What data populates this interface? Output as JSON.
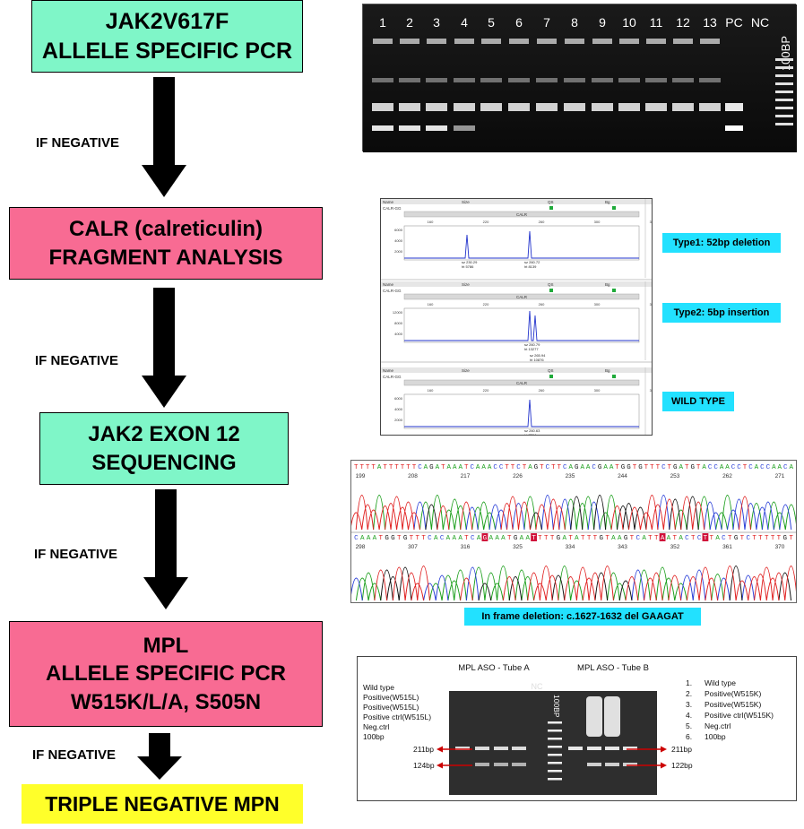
{
  "steps": [
    {
      "line1": "JAK2V617F",
      "line2": "ALLELE SPECIFIC PCR"
    },
    {
      "line1": "CALR (calreticulin)",
      "line2": "FRAGMENT ANALYSIS"
    },
    {
      "line1": "JAK2 EXON 12",
      "line2": "SEQUENCING"
    },
    {
      "line1": "MPL",
      "line2": "ALLELE SPECIFIC PCR",
      "line3": "W515K/L/A, S505N"
    }
  ],
  "if_negative": [
    "IF NEGATIVE",
    "IF NEGATIVE",
    "IF NEGATIVE",
    "IF NEGATIVE"
  ],
  "final": "TRIPLE NEGATIVE MPN",
  "gel1": {
    "lanes": [
      "1",
      "2",
      "3",
      "4",
      "5",
      "6",
      "7",
      "8",
      "9",
      "10",
      "11",
      "12",
      "13",
      "PC",
      "NC",
      "100BP"
    ]
  },
  "calr": {
    "types": [
      "Type1: 52bp deletion",
      "Type2: 5bp insertion",
      "WILD TYPE"
    ],
    "panel_label": "CALR",
    "sample_name": "CALR-GG",
    "header_cols": [
      "Name",
      "Size",
      "QS",
      "Bg"
    ],
    "ticks": [
      "160",
      "220",
      "260",
      "300",
      "340"
    ],
    "yticks1": [
      "6000",
      "4000",
      "2000"
    ],
    "yticks2": [
      "12000",
      "8000",
      "4000"
    ],
    "yticks3": [
      "6000",
      "4000",
      "2000"
    ],
    "peak_labels": [
      {
        "sz": "sz 230.29",
        "ht": "ht 5786"
      },
      {
        "sz": "sz 260.72",
        "ht": "ht 8139"
      },
      {
        "sz": "sz 260.79",
        "ht": "ht 13277"
      },
      {
        "sz": "sz 265.94",
        "ht": "ht 10876"
      },
      {
        "sz": "sz 260.63",
        "ht": "ht 7294"
      }
    ]
  },
  "seq": {
    "row1_bases": "TTTTATTTTTTCAGATAAATCAAACCTTCTAGTCTTCAGAACGAATGGTGTTTCTGATGTACCAACCTCACCAACA",
    "row1_ticks": [
      "199",
      "208",
      "217",
      "226",
      "235",
      "244",
      "253",
      "262",
      "271"
    ],
    "row2_bases": "CAAATGGTGTTTCACAAATCAGAAATGAATTTTGATATTTGTAAGTCATTAATACTCTTACTGTCTTTTTGT",
    "row2_ticks": [
      "298",
      "307",
      "316",
      "325",
      "334",
      "343",
      "352",
      "361",
      "370"
    ],
    "caption": "In frame deletion: c.1627-1632 del GAAGAT"
  },
  "mpl": {
    "title_a": "MPL ASO - Tube A",
    "title_b": "MPL ASO - Tube B",
    "lanes_a": [
      "1",
      "2",
      "3",
      "4",
      "NC"
    ],
    "ladder": "100BP",
    "lanes_b": [
      "1",
      "2",
      "3",
      "4",
      "NC"
    ],
    "legend_left": [
      "Wild type",
      "Positive(W515L)",
      "Positive(W515L)",
      "Positive ctrl(W515L)",
      "Neg.ctrl",
      "100bp"
    ],
    "legend_right_nums": [
      "1.",
      "2.",
      "3.",
      "4.",
      "5.",
      "6."
    ],
    "legend_right": [
      "Wild type",
      "Positive(W515K)",
      "Positive(W515K)",
      "Positive ctrl(W515K)",
      "Neg.ctrl",
      "100bp"
    ],
    "left_marks": [
      "211bp",
      "124bp"
    ],
    "right_marks": [
      "211bp",
      "122bp"
    ]
  },
  "colors": {
    "green_box": "#7ff6c8",
    "pink_box": "#f86b93",
    "final_box": "#ffff2a",
    "tag": "#22e1ff",
    "arrow_red": "#cc0000"
  }
}
